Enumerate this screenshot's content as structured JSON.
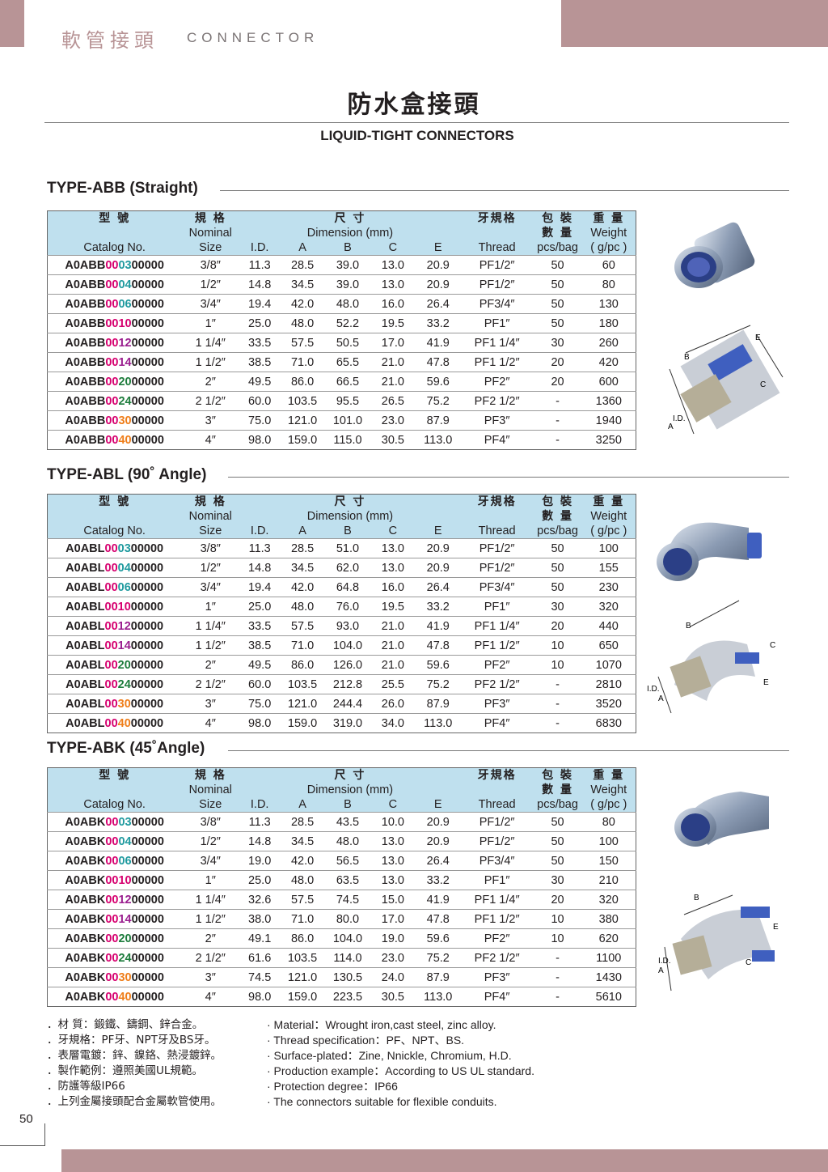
{
  "header": {
    "title_zh": "軟管接頭",
    "title_en": "CONNECTOR"
  },
  "page": {
    "title_zh": "防水盒接頭",
    "title_en": "LIQUID-TIGHT CONNECTORS",
    "number": "50"
  },
  "table_headers": {
    "row1": [
      "型 號",
      "規 格",
      "尺 寸",
      "牙規格",
      "包 裝",
      "重 量"
    ],
    "row2": [
      "Nominal",
      "Dimension (mm)",
      "數 量",
      "Weight"
    ],
    "row3": [
      "Catalog No.",
      "Size",
      "I.D.",
      "A",
      "B",
      "C",
      "E",
      "Thread",
      "pcs/bag",
      "( g/pc )"
    ]
  },
  "sections": [
    {
      "title": "TYPE-ABB (Straight)",
      "prefix": "A0ABB",
      "rows": [
        {
          "mid": "00",
          "ser": "03",
          "tail": "00000",
          "size": "3/8″",
          "id": "11.3",
          "a": "28.5",
          "b": "39.0",
          "c": "13.0",
          "e": "20.9",
          "thread": "PF1/2″",
          "pcs": "50",
          "weight": "60"
        },
        {
          "mid": "00",
          "ser": "04",
          "tail": "00000",
          "size": "1/2″",
          "id": "14.8",
          "a": "34.5",
          "b": "39.0",
          "c": "13.0",
          "e": "20.9",
          "thread": "PF1/2″",
          "pcs": "50",
          "weight": "80"
        },
        {
          "mid": "00",
          "ser": "06",
          "tail": "00000",
          "size": "3/4″",
          "id": "19.4",
          "a": "42.0",
          "b": "48.0",
          "c": "16.0",
          "e": "26.4",
          "thread": "PF3/4″",
          "pcs": "50",
          "weight": "130"
        },
        {
          "mid": "00",
          "ser": "10",
          "tail": "00000",
          "size": "1″",
          "id": "25.0",
          "a": "48.0",
          "b": "52.2",
          "c": "19.5",
          "e": "33.2",
          "thread": "PF1″",
          "pcs": "50",
          "weight": "180"
        },
        {
          "mid": "00",
          "ser": "12",
          "tail": "00000",
          "size": "1 1/4″",
          "id": "33.5",
          "a": "57.5",
          "b": "50.5",
          "c": "17.0",
          "e": "41.9",
          "thread": "PF1 1/4″",
          "pcs": "30",
          "weight": "260"
        },
        {
          "mid": "00",
          "ser": "14",
          "tail": "00000",
          "size": "1 1/2″",
          "id": "38.5",
          "a": "71.0",
          "b": "65.5",
          "c": "21.0",
          "e": "47.8",
          "thread": "PF1 1/2″",
          "pcs": "20",
          "weight": "420"
        },
        {
          "mid": "00",
          "ser": "20",
          "tail": "00000",
          "size": "2″",
          "id": "49.5",
          "a": "86.0",
          "b": "66.5",
          "c": "21.0",
          "e": "59.6",
          "thread": "PF2″",
          "pcs": "20",
          "weight": "600"
        },
        {
          "mid": "00",
          "ser": "24",
          "tail": "00000",
          "size": "2 1/2″",
          "id": "60.0",
          "a": "103.5",
          "b": "95.5",
          "c": "26.5",
          "e": "75.2",
          "thread": "PF2 1/2″",
          "pcs": "-",
          "weight": "1360"
        },
        {
          "mid": "00",
          "ser": "30",
          "tail": "00000",
          "size": "3″",
          "id": "75.0",
          "a": "121.0",
          "b": "101.0",
          "c": "23.0",
          "e": "87.9",
          "thread": "PF3″",
          "pcs": "-",
          "weight": "1940"
        },
        {
          "mid": "00",
          "ser": "40",
          "tail": "00000",
          "size": "4″",
          "id": "98.0",
          "a": "159.0",
          "b": "115.0",
          "c": "30.5",
          "e": "113.0",
          "thread": "PF4″",
          "pcs": "-",
          "weight": "3250"
        }
      ]
    },
    {
      "title": "TYPE-ABL (90˚ Angle)",
      "prefix": "A0ABL",
      "rows": [
        {
          "mid": "00",
          "ser": "03",
          "tail": "00000",
          "size": "3/8″",
          "id": "11.3",
          "a": "28.5",
          "b": "51.0",
          "c": "13.0",
          "e": "20.9",
          "thread": "PF1/2″",
          "pcs": "50",
          "weight": "100"
        },
        {
          "mid": "00",
          "ser": "04",
          "tail": "00000",
          "size": "1/2″",
          "id": "14.8",
          "a": "34.5",
          "b": "62.0",
          "c": "13.0",
          "e": "20.9",
          "thread": "PF1/2″",
          "pcs": "50",
          "weight": "155"
        },
        {
          "mid": "00",
          "ser": "06",
          "tail": "00000",
          "size": "3/4″",
          "id": "19.4",
          "a": "42.0",
          "b": "64.8",
          "c": "16.0",
          "e": "26.4",
          "thread": "PF3/4″",
          "pcs": "50",
          "weight": "230"
        },
        {
          "mid": "00",
          "ser": "10",
          "tail": "00000",
          "size": "1″",
          "id": "25.0",
          "a": "48.0",
          "b": "76.0",
          "c": "19.5",
          "e": "33.2",
          "thread": "PF1″",
          "pcs": "30",
          "weight": "320"
        },
        {
          "mid": "00",
          "ser": "12",
          "tail": "00000",
          "size": "1 1/4″",
          "id": "33.5",
          "a": "57.5",
          "b": "93.0",
          "c": "21.0",
          "e": "41.9",
          "thread": "PF1 1/4″",
          "pcs": "20",
          "weight": "440"
        },
        {
          "mid": "00",
          "ser": "14",
          "tail": "00000",
          "size": "1 1/2″",
          "id": "38.5",
          "a": "71.0",
          "b": "104.0",
          "c": "21.0",
          "e": "47.8",
          "thread": "PF1 1/2″",
          "pcs": "10",
          "weight": "650"
        },
        {
          "mid": "00",
          "ser": "20",
          "tail": "00000",
          "size": "2″",
          "id": "49.5",
          "a": "86.0",
          "b": "126.0",
          "c": "21.0",
          "e": "59.6",
          "thread": "PF2″",
          "pcs": "10",
          "weight": "1070"
        },
        {
          "mid": "00",
          "ser": "24",
          "tail": "00000",
          "size": "2 1/2″",
          "id": "60.0",
          "a": "103.5",
          "b": "212.8",
          "c": "25.5",
          "e": "75.2",
          "thread": "PF2 1/2″",
          "pcs": "-",
          "weight": "2810"
        },
        {
          "mid": "00",
          "ser": "30",
          "tail": "00000",
          "size": "3″",
          "id": "75.0",
          "a": "121.0",
          "b": "244.4",
          "c": "26.0",
          "e": "87.9",
          "thread": "PF3″",
          "pcs": "-",
          "weight": "3520"
        },
        {
          "mid": "00",
          "ser": "40",
          "tail": "00000",
          "size": "4″",
          "id": "98.0",
          "a": "159.0",
          "b": "319.0",
          "c": "34.0",
          "e": "113.0",
          "thread": "PF4″",
          "pcs": "-",
          "weight": "6830"
        }
      ]
    },
    {
      "title": "TYPE-ABK (45˚Angle)",
      "prefix": "A0ABK",
      "rows": [
        {
          "mid": "00",
          "ser": "03",
          "tail": "00000",
          "size": "3/8″",
          "id": "11.3",
          "a": "28.5",
          "b": "43.5",
          "c": "10.0",
          "e": "20.9",
          "thread": "PF1/2″",
          "pcs": "50",
          "weight": "80"
        },
        {
          "mid": "00",
          "ser": "04",
          "tail": "00000",
          "size": "1/2″",
          "id": "14.8",
          "a": "34.5",
          "b": "48.0",
          "c": "13.0",
          "e": "20.9",
          "thread": "PF1/2″",
          "pcs": "50",
          "weight": "100"
        },
        {
          "mid": "00",
          "ser": "06",
          "tail": "00000",
          "size": "3/4″",
          "id": "19.0",
          "a": "42.0",
          "b": "56.5",
          "c": "13.0",
          "e": "26.4",
          "thread": "PF3/4″",
          "pcs": "50",
          "weight": "150"
        },
        {
          "mid": "00",
          "ser": "10",
          "tail": "00000",
          "size": "1″",
          "id": "25.0",
          "a": "48.0",
          "b": "63.5",
          "c": "13.0",
          "e": "33.2",
          "thread": "PF1″",
          "pcs": "30",
          "weight": "210"
        },
        {
          "mid": "00",
          "ser": "12",
          "tail": "00000",
          "size": "1 1/4″",
          "id": "32.6",
          "a": "57.5",
          "b": "74.5",
          "c": "15.0",
          "e": "41.9",
          "thread": "PF1 1/4″",
          "pcs": "20",
          "weight": "320"
        },
        {
          "mid": "00",
          "ser": "14",
          "tail": "00000",
          "size": "1 1/2″",
          "id": "38.0",
          "a": "71.0",
          "b": "80.0",
          "c": "17.0",
          "e": "47.8",
          "thread": "PF1 1/2″",
          "pcs": "10",
          "weight": "380"
        },
        {
          "mid": "00",
          "ser": "20",
          "tail": "00000",
          "size": "2″",
          "id": "49.1",
          "a": "86.0",
          "b": "104.0",
          "c": "19.0",
          "e": "59.6",
          "thread": "PF2″",
          "pcs": "10",
          "weight": "620"
        },
        {
          "mid": "00",
          "ser": "24",
          "tail": "00000",
          "size": "2 1/2″",
          "id": "61.6",
          "a": "103.5",
          "b": "114.0",
          "c": "23.0",
          "e": "75.2",
          "thread": "PF2 1/2″",
          "pcs": "-",
          "weight": "1100"
        },
        {
          "mid": "00",
          "ser": "30",
          "tail": "00000",
          "size": "3″",
          "id": "74.5",
          "a": "121.0",
          "b": "130.5",
          "c": "24.0",
          "e": "87.9",
          "thread": "PF3″",
          "pcs": "-",
          "weight": "1430"
        },
        {
          "mid": "00",
          "ser": "40",
          "tail": "00000",
          "size": "4″",
          "id": "98.0",
          "a": "159.0",
          "b": "223.5",
          "c": "30.5",
          "e": "113.0",
          "thread": "PF4″",
          "pcs": "-",
          "weight": "5610"
        }
      ]
    }
  ],
  "diagram_labels": {
    "a": "A",
    "b": "B",
    "c": "C",
    "e": "E",
    "id": "I.D."
  },
  "notes_zh": [
    "．材 質：鍛鐵、鑄鋼、鋅合金。",
    "．牙規格：PF牙、NPT牙及BS牙。",
    "．表層電鍍：鋅、鎳鉻、熱浸鍍鋅。",
    "．製作範例：遵照美國UL規範。",
    "．防護等級IP66",
    "．上列金屬接頭配合金屬軟管使用。"
  ],
  "notes_en": [
    "· Material：Wrought iron,cast steel, zinc alloy.",
    "· Thread specification：PF、NPT、BS.",
    "· Surface-plated：Zine, Nnickle, Chromium, H.D.",
    "· Production example：According to US UL standard.",
    "· Protection degree：IP66",
    "· The connectors suitable for flexible conduits."
  ],
  "colors": {
    "accent": "#b89496",
    "header_fill": "#bfe0ee",
    "catalog_digits_a": "#d6006f",
    "catalog_digits_b": "#9a1f8f",
    "catalog_digits_c": "#1d7c3c",
    "catalog_digits_d": "#1f9a9f",
    "catalog_digits_e": "#ef7e1a"
  }
}
